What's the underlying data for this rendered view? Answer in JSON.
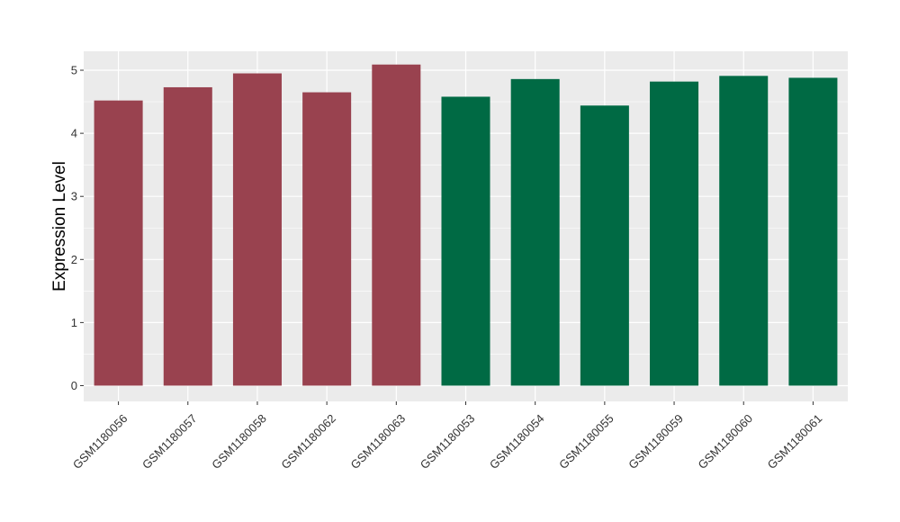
{
  "chart_data": {
    "type": "bar",
    "title": "",
    "xlabel": "",
    "ylabel": "Expression Level",
    "ylim": [
      -0.25,
      5.3
    ],
    "yticks": [
      0,
      1,
      2,
      3,
      4,
      5
    ],
    "grid": true,
    "legend": "none",
    "categories": [
      "GSM1180056",
      "GSM1180057",
      "GSM1180058",
      "GSM1180062",
      "GSM1180063",
      "GSM1180053",
      "GSM1180054",
      "GSM1180055",
      "GSM1180059",
      "GSM1180060",
      "GSM1180061"
    ],
    "values": [
      4.52,
      4.73,
      4.95,
      4.65,
      5.09,
      4.58,
      4.86,
      4.44,
      4.82,
      4.91,
      4.88
    ],
    "bar_colors": [
      "#99424f",
      "#99424f",
      "#99424f",
      "#99424f",
      "#99424f",
      "#006a44",
      "#006a44",
      "#006a44",
      "#006a44",
      "#006a44",
      "#006a44"
    ]
  },
  "colors": {
    "panel_background": "#ebebeb",
    "grid_major": "#ffffff",
    "group_1": "#99424f",
    "group_2": "#006a44"
  }
}
